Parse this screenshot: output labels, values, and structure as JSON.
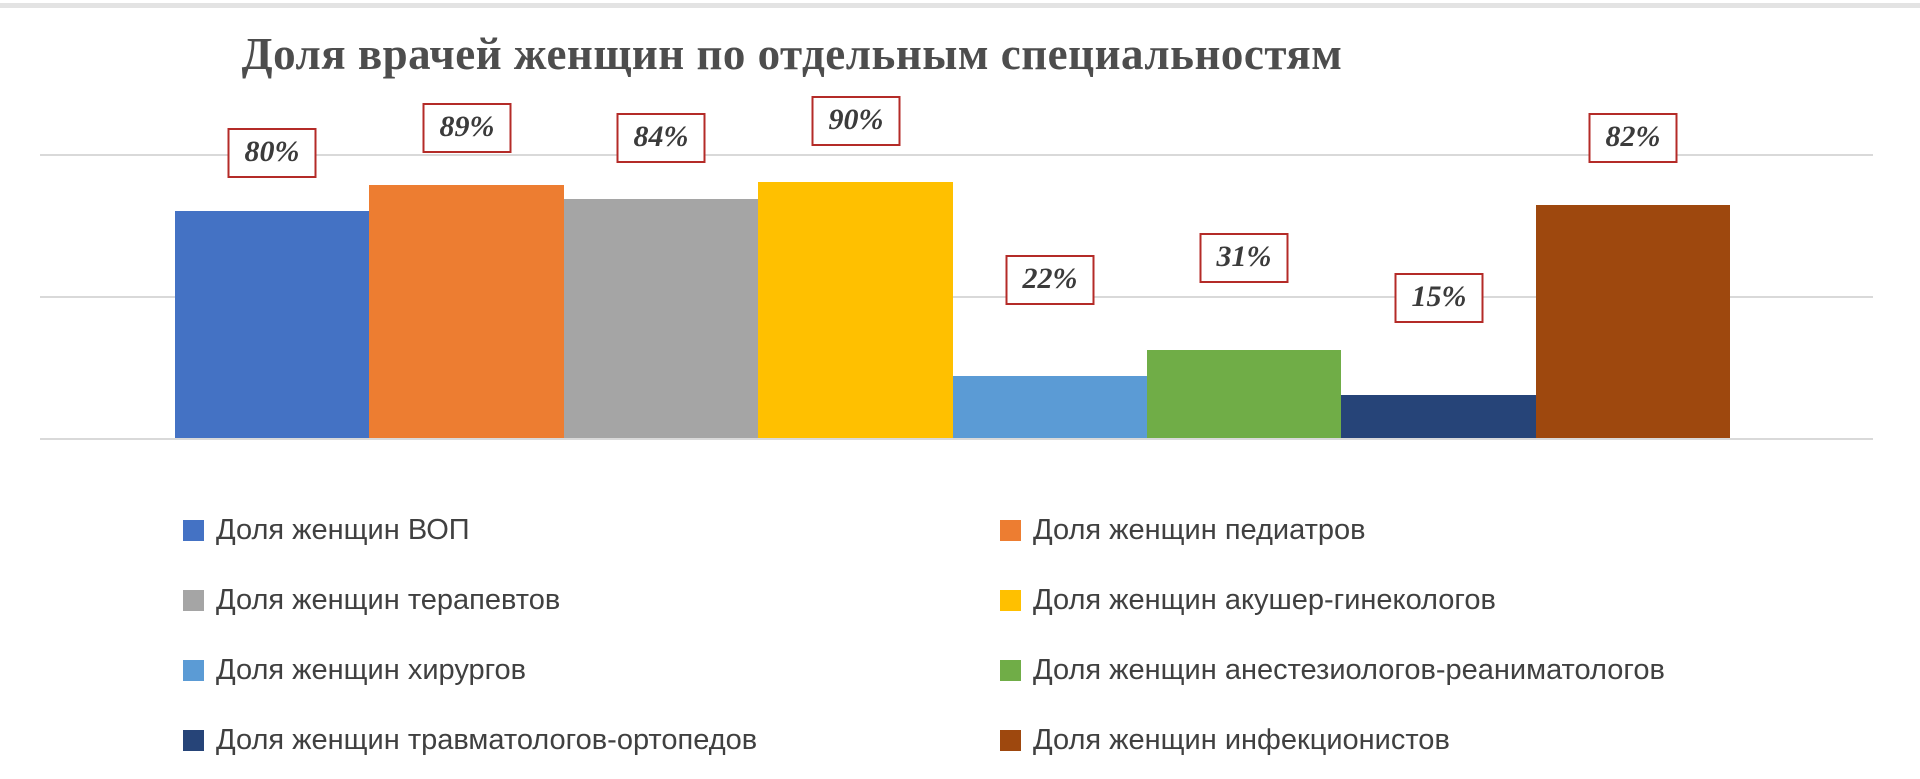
{
  "chart_data": {
    "type": "bar",
    "title": "Доля врачей женщин по отдельным специальностям",
    "categories": [
      "Доля женщин ВОП",
      "Доля женщин педиатров",
      "Доля женщин терапевтов",
      "Доля женщин акушер-гинекологов",
      "Доля женщин хирургов",
      "Доля женщин анестезиологов-реаниматологов",
      "Доля женщин травматологов-ортопедов",
      "Доля женщин инфекционистов"
    ],
    "values": [
      80,
      89,
      84,
      90,
      22,
      31,
      15,
      82
    ],
    "data_labels": [
      "80%",
      "89%",
      "84%",
      "90%",
      "22%",
      "31%",
      "15%",
      "82%"
    ],
    "colors": [
      "#4472C4",
      "#ED7D31",
      "#A5A5A5",
      "#FFC000",
      "#5B9BD5",
      "#70AD47",
      "#264478",
      "#9E480E"
    ],
    "xlabel": "",
    "ylabel": "",
    "ylim": [
      0,
      100
    ],
    "grid": true,
    "gridlines": [
      0,
      50,
      100
    ],
    "gridline_color": "#D9D9D9",
    "legend_position": "bottom",
    "legend_columns": 2,
    "label_offsets": [
      31,
      30,
      34,
      34,
      69,
      65,
      70,
      40
    ],
    "label_box_style": {
      "border_color": "#B42B28",
      "fill": "#FFFFFF",
      "text_color": "#3B3B3B"
    },
    "title_color": "#4D4D4D",
    "legend_text_color": "#404040"
  }
}
